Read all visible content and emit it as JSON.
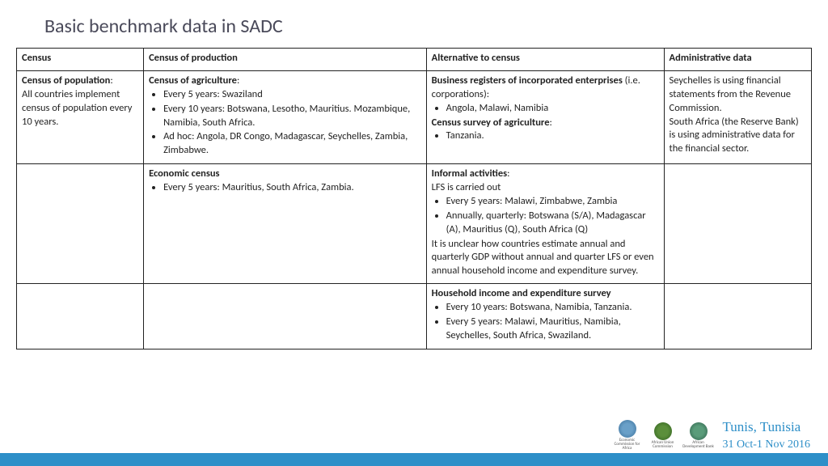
{
  "title": "Basic  benchmark data in SADC",
  "columns": [
    "Census",
    "Census of production",
    "Alternative to census",
    "Administrative data"
  ],
  "row1": {
    "census_head": "Census of population",
    "census_body": "All countries implement census of population every 10 years.",
    "prod_head": "Census of agriculture",
    "prod_b1": "Every 5 years: Swaziland",
    "prod_b2": "Every 10 years: Botswana, Lesotho, Mauritius. Mozambique, Namibia, South Africa.",
    "prod_b3": "Ad hoc: Angola, DR Congo, Madagascar, Seychelles, Zambia, Zimbabwe.",
    "alt_head1": "Business registers of incorporated enterprises",
    "alt_sub1": "(i.e. corporations):",
    "alt_b1": "Angola, Malawi, Namibia",
    "alt_head2": "Census survey of agriculture",
    "alt_b2": "Tanzania.",
    "admin": "Seychelles is using financial statements from the Revenue Commission.\nSouth Africa (the Reserve Bank) is using administrative data for the financial sector."
  },
  "row2": {
    "prod_head": "Economic census",
    "prod_b1": "Every 5 years: Mauritius, South Africa, Zambia.",
    "alt_head": "Informal activities",
    "alt_l1": "LFS is carried out",
    "alt_b1": "Every 5 years: Malawi, Zimbabwe, Zambia",
    "alt_b2": "Annually, quarterly: Botswana (S/A), Madagascar (A), Mauritius (Q), South Africa (Q)",
    "alt_tail": "It is unclear how countries estimate annual and quarterly GDP without annual and quarter LFS or even annual household income and expenditure survey."
  },
  "row3": {
    "alt_head": "Household income and expenditure survey",
    "alt_b1": "Every 10 years: Botswana, Namibia, Tanzania.",
    "alt_b2": "Every 5 years: Malawi, Mauritius, Namibia, Seychelles, South Africa, Swaziland."
  },
  "footer": {
    "logo1": "Economic Commission for Africa",
    "logo2": "African Union Commission",
    "logo3": "African Development Bank",
    "location": "Tunis, Tunisia",
    "date": "31 Oct-1 Nov 2016"
  }
}
